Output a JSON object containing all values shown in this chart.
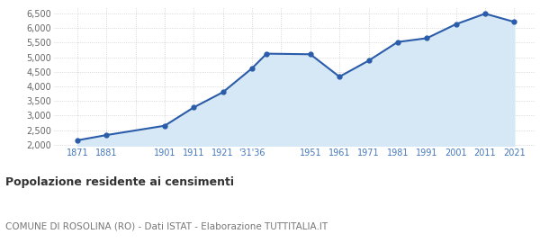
{
  "years": [
    1871,
    1881,
    1901,
    1911,
    1921,
    1931,
    1936,
    1951,
    1961,
    1971,
    1981,
    1991,
    2001,
    2011,
    2021
  ],
  "population": [
    2150,
    2330,
    2650,
    3280,
    3800,
    4620,
    5120,
    5100,
    4330,
    4880,
    5520,
    5650,
    6130,
    6490,
    6210
  ],
  "x_tick_labels": [
    "1871",
    "1881",
    "",
    "1901",
    "1911",
    "1921",
    "'31'36",
    "",
    "1951",
    "1961",
    "1971",
    "1981",
    "1991",
    "2001",
    "2011",
    "2021"
  ],
  "x_tick_positions": [
    1871,
    1881,
    1891,
    1901,
    1911,
    1921,
    1931,
    1941,
    1951,
    1961,
    1971,
    1981,
    1991,
    2001,
    2011,
    2021
  ],
  "ylim": [
    1950,
    6700
  ],
  "yticks": [
    2000,
    2500,
    3000,
    3500,
    4000,
    4500,
    5000,
    5500,
    6000,
    6500
  ],
  "fill_baseline": 1950,
  "line_color": "#2a5caa",
  "fill_color": "#d6e8f5",
  "marker_color": "#2a5caa",
  "bg_color": "#ffffff",
  "grid_color": "#cccccc",
  "grid_linestyle": "dotted",
  "title": "Popolazione residente ai censimenti",
  "subtitle": "COMUNE DI ROSOLINA (RO) - Dati ISTAT - Elaborazione TUTTITALIA.IT",
  "tick_label_color": "#4477bb",
  "ytick_label_color": "#666666",
  "xlim": [
    1863,
    2028
  ]
}
